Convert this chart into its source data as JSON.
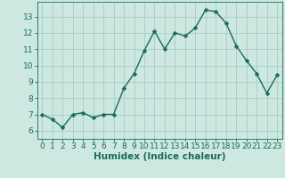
{
  "x": [
    0,
    1,
    2,
    3,
    4,
    5,
    6,
    7,
    8,
    9,
    10,
    11,
    12,
    13,
    14,
    15,
    16,
    17,
    18,
    19,
    20,
    21,
    22,
    23
  ],
  "y": [
    7.0,
    6.7,
    6.2,
    7.0,
    7.1,
    6.8,
    7.0,
    7.0,
    8.6,
    9.5,
    10.9,
    12.1,
    11.0,
    12.0,
    11.8,
    12.3,
    13.4,
    13.3,
    12.6,
    11.2,
    10.3,
    9.5,
    8.3,
    9.4
  ],
  "line_color": "#1a6b5a",
  "marker": "D",
  "marker_size": 2.5,
  "bg_color": "#cce8e0",
  "grid_color": "#aaccC4",
  "xlabel": "Humidex (Indice chaleur)",
  "ylim": [
    5.5,
    13.9
  ],
  "xlim": [
    -0.5,
    23.5
  ],
  "yticks": [
    6,
    7,
    8,
    9,
    10,
    11,
    12,
    13
  ],
  "xticks": [
    0,
    1,
    2,
    3,
    4,
    5,
    6,
    7,
    8,
    9,
    10,
    11,
    12,
    13,
    14,
    15,
    16,
    17,
    18,
    19,
    20,
    21,
    22,
    23
  ],
  "tick_label_size": 6.5,
  "xlabel_size": 7.5,
  "line_width": 1.0
}
